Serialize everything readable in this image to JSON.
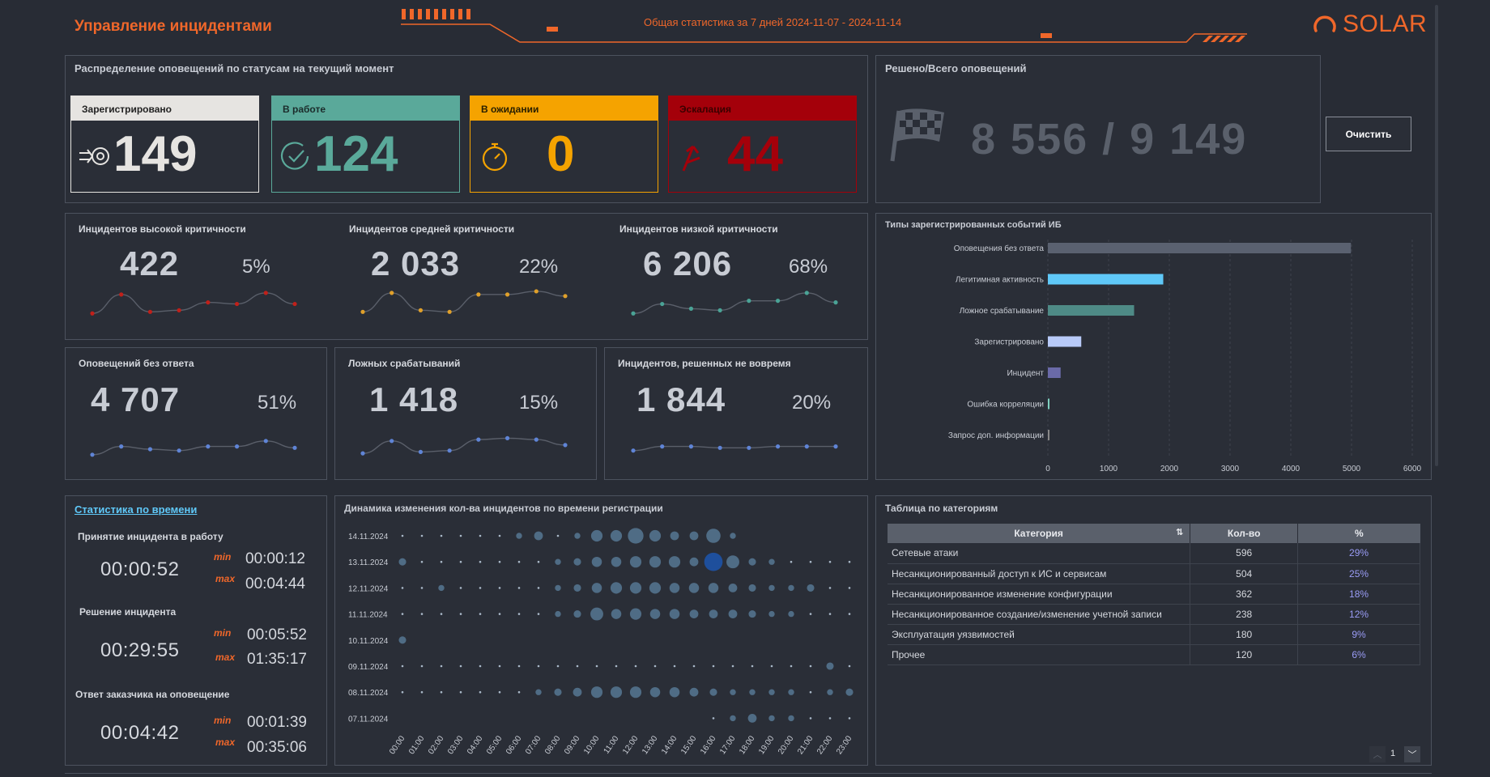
{
  "header": {
    "title": "Управление инцидентами",
    "stat_range": "Общая статистика за 7 дней 2024-11-07 - 2024-11-14",
    "logo_text": "SOLAR",
    "accent": "#f0672a"
  },
  "status_panel": {
    "title": "Распределение оповещений по статусам на текущий момент",
    "cards": [
      {
        "label": "Зарегистрировано",
        "value": "149",
        "icon": "gear-arrow-icon",
        "color": "#e6e4e1"
      },
      {
        "label": "В работе",
        "value": "124",
        "icon": "clock-check-icon",
        "color": "#5aa99a"
      },
      {
        "label": "В ожидании",
        "value": "0",
        "icon": "stopwatch-icon",
        "color": "#f5a300"
      },
      {
        "label": "Эскалация",
        "value": "44",
        "icon": "up-arrow-icon",
        "color": "#a4000a"
      }
    ]
  },
  "resolved_panel": {
    "title": "Решено/Всего оповещений",
    "value": "8 556 / 9 149",
    "icon": "checkered-flag-icon",
    "clear_button": "Очистить"
  },
  "criticality": [
    {
      "label": "Инцидентов высокой критичности",
      "value": "422",
      "pct": "5%",
      "color": "#c0201a",
      "spark": [
        0.25,
        0.85,
        0.3,
        0.35,
        0.6,
        0.55,
        0.9,
        0.55
      ]
    },
    {
      "label": "Инцидентов средней критичности",
      "value": "2 033",
      "pct": "22%",
      "color": "#e0a02a",
      "spark": [
        0.3,
        0.9,
        0.35,
        0.3,
        0.85,
        0.85,
        0.95,
        0.8
      ]
    },
    {
      "label": "Инцидентов низкой критичности",
      "value": "6 206",
      "pct": "68%",
      "color": "#4aa396",
      "spark": [
        0.25,
        0.55,
        0.4,
        0.35,
        0.65,
        0.65,
        0.9,
        0.6
      ]
    }
  ],
  "kpis": [
    {
      "label": "Оповещений без ответа",
      "value": "4 707",
      "pct": "51%",
      "color": "#5f84d6",
      "spark": [
        0.3,
        0.6,
        0.5,
        0.45,
        0.6,
        0.6,
        0.8,
        0.55
      ]
    },
    {
      "label": "Ложных срабатываний",
      "value": "1 418",
      "pct": "15%",
      "color": "#5f84d6",
      "spark": [
        0.35,
        0.8,
        0.4,
        0.45,
        0.85,
        0.9,
        0.85,
        0.65
      ]
    },
    {
      "label": "Инцидентов, решенных не вовремя",
      "value": "1 844",
      "pct": "20%",
      "color": "#5f84d6",
      "spark": [
        0.45,
        0.6,
        0.6,
        0.55,
        0.55,
        0.6,
        0.6,
        0.6
      ]
    }
  ],
  "time_stats": {
    "title": "Статистика по времени",
    "min_label": "min",
    "max_label": "max",
    "items": [
      {
        "label": "Принятие инцидента в работу",
        "avg": "00:00:52",
        "min": "00:00:12",
        "max": "00:04:44"
      },
      {
        "label": "Решение инцидента",
        "avg": "00:29:55",
        "min": "00:05:52",
        "max": "01:35:17"
      },
      {
        "label": "Ответ заказчика на оповещение",
        "avg": "00:04:42",
        "min": "00:01:39",
        "max": "00:35:06"
      }
    ]
  },
  "dynamics": {
    "title": "Динамика изменения кол-ва инцидентов по времени регистрации",
    "dates": [
      "14.11.2024",
      "13.11.2024",
      "12.11.2024",
      "11.11.2024",
      "10.11.2024",
      "09.11.2024",
      "08.11.2024",
      "07.11.2024"
    ],
    "hours": [
      "00:00",
      "01:00",
      "02:00",
      "03:00",
      "04:00",
      "05:00",
      "06:00",
      "07:00",
      "08:00",
      "09:00",
      "10:00",
      "11:00",
      "12:00",
      "13:00",
      "14:00",
      "15:00",
      "16:00",
      "17:00",
      "18:00",
      "19:00",
      "20:00",
      "21:00",
      "22:00",
      "23:00"
    ],
    "sizes": [
      [
        1,
        1,
        1,
        1,
        1,
        1,
        2,
        4,
        1,
        2,
        6,
        6,
        9,
        6,
        4,
        4,
        8,
        2,
        0,
        0,
        0,
        0,
        0,
        0
      ],
      [
        3,
        1,
        1,
        1,
        1,
        1,
        1,
        1,
        2,
        3,
        5,
        5,
        6,
        6,
        6,
        4,
        11,
        7,
        3,
        2,
        1,
        1,
        1,
        1
      ],
      [
        1,
        1,
        2,
        1,
        1,
        1,
        1,
        1,
        2,
        3,
        5,
        6,
        6,
        6,
        5,
        5,
        5,
        4,
        3,
        2,
        2,
        3,
        1,
        1
      ],
      [
        1,
        1,
        1,
        1,
        1,
        1,
        1,
        1,
        2,
        3,
        7,
        5,
        6,
        5,
        5,
        4,
        4,
        4,
        3,
        2,
        2,
        1,
        1,
        1
      ],
      [
        3,
        0,
        0,
        0,
        0,
        0,
        0,
        0,
        0,
        0,
        0,
        0,
        0,
        0,
        0,
        0,
        0,
        0,
        0,
        0,
        0,
        0,
        0,
        0
      ],
      [
        1,
        1,
        1,
        1,
        1,
        1,
        1,
        1,
        1,
        1,
        1,
        1,
        1,
        1,
        1,
        1,
        1,
        1,
        1,
        1,
        1,
        1,
        3,
        1
      ],
      [
        1,
        1,
        1,
        1,
        1,
        1,
        1,
        2,
        3,
        4,
        6,
        6,
        6,
        5,
        5,
        4,
        3,
        2,
        2,
        2,
        2,
        1,
        2,
        3
      ],
      [
        0,
        0,
        0,
        0,
        0,
        0,
        0,
        0,
        0,
        0,
        0,
        0,
        0,
        0,
        0,
        0,
        1,
        2,
        4,
        2,
        2,
        1,
        1,
        1
      ]
    ],
    "highlight": {
      "row": 1,
      "col": 16,
      "color": "#1e4f9c"
    }
  },
  "chart_data": {
    "type": "bar",
    "orientation": "horizontal",
    "title": "Типы зарегистрированных событий ИБ",
    "categories": [
      "Оповещения без ответа",
      "Легитимная активность",
      "Ложное срабатывание",
      "Зарегистрировано",
      "Инцидент",
      "Ошибка корреляции",
      "Запрос доп. информации"
    ],
    "values": [
      4990,
      1900,
      1420,
      550,
      210,
      20,
      5
    ],
    "colors": [
      "#5a6170",
      "#5fc8f8",
      "#4e8a86",
      "#b8caf8",
      "#6a6aa8",
      "#7fd0c0",
      "#888888"
    ],
    "xlim": [
      0,
      6000
    ],
    "xticks": [
      0,
      1000,
      2000,
      3000,
      4000,
      5000,
      6000
    ],
    "grid": true
  },
  "category_table": {
    "title": "Таблица по категориям",
    "columns": [
      "Категория",
      "Кол-во",
      "%"
    ],
    "rows": [
      [
        "Сетевые атаки",
        "596",
        "29%"
      ],
      [
        "Несанкционированный доступ к ИС и сервисам",
        "504",
        "25%"
      ],
      [
        "Несанкционированное изменение конфигурации",
        "362",
        "18%"
      ],
      [
        "Несанкционированное создание/изменение учетной записи",
        "238",
        "12%"
      ],
      [
        "Эксплуатация уязвимостей",
        "180",
        "9%"
      ],
      [
        "Прочее",
        "120",
        "6%"
      ]
    ],
    "page": "1"
  }
}
